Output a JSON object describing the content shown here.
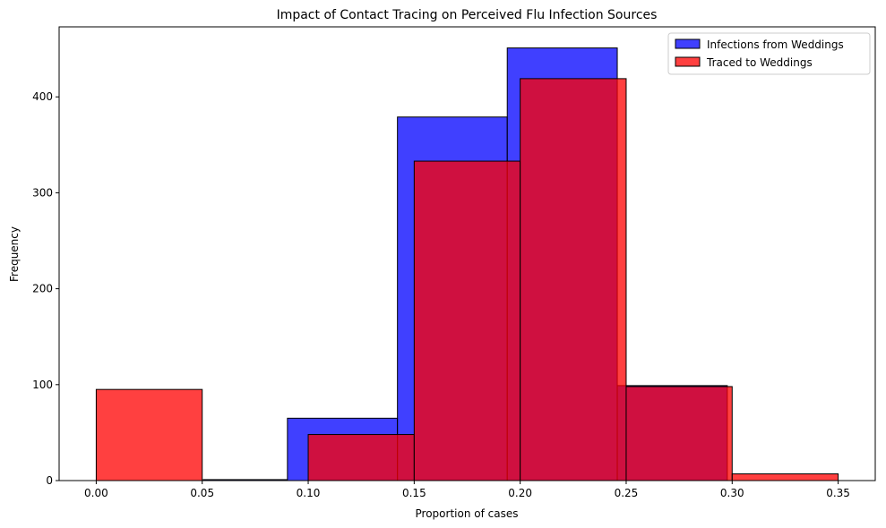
{
  "chart_data": {
    "type": "bar",
    "title": "Impact of Contact Tracing on Perceived Flu Infection Sources",
    "xlabel": "Proportion of cases",
    "ylabel": "Frequency",
    "xlim": [
      -0.0175,
      0.3675
    ],
    "ylim": [
      0,
      473
    ],
    "x_ticks": [
      0.0,
      0.05,
      0.1,
      0.15,
      0.2,
      0.25,
      0.3,
      0.35
    ],
    "x_tick_labels": [
      "0.00",
      "0.05",
      "0.10",
      "0.15",
      "0.20",
      "0.25",
      "0.30",
      "0.35"
    ],
    "y_ticks": [
      0,
      100,
      200,
      300,
      400
    ],
    "y_tick_labels": [
      "0",
      "100",
      "200",
      "300",
      "400"
    ],
    "grid": false,
    "legend_position": "top-right",
    "series": [
      {
        "name": "Infections from Weddings",
        "color": "#0000ff",
        "opacity": 0.75,
        "bins": [
          {
            "x0": 0.0505,
            "x1": 0.0902,
            "value": 1
          },
          {
            "x0": 0.0902,
            "x1": 0.1421,
            "value": 65
          },
          {
            "x0": 0.1421,
            "x1": 0.1939,
            "value": 379
          },
          {
            "x0": 0.1939,
            "x1": 0.2458,
            "value": 451
          },
          {
            "x0": 0.2458,
            "x1": 0.2977,
            "value": 99
          }
        ]
      },
      {
        "name": "Traced to Weddings",
        "color": "#ff0000",
        "opacity": 0.75,
        "bins": [
          {
            "x0": 0.0,
            "x1": 0.05,
            "value": 95
          },
          {
            "x0": 0.1,
            "x1": 0.15,
            "value": 48
          },
          {
            "x0": 0.15,
            "x1": 0.2,
            "value": 333
          },
          {
            "x0": 0.2,
            "x1": 0.25,
            "value": 419
          },
          {
            "x0": 0.25,
            "x1": 0.3,
            "value": 98
          },
          {
            "x0": 0.3,
            "x1": 0.35,
            "value": 7
          }
        ]
      }
    ]
  }
}
